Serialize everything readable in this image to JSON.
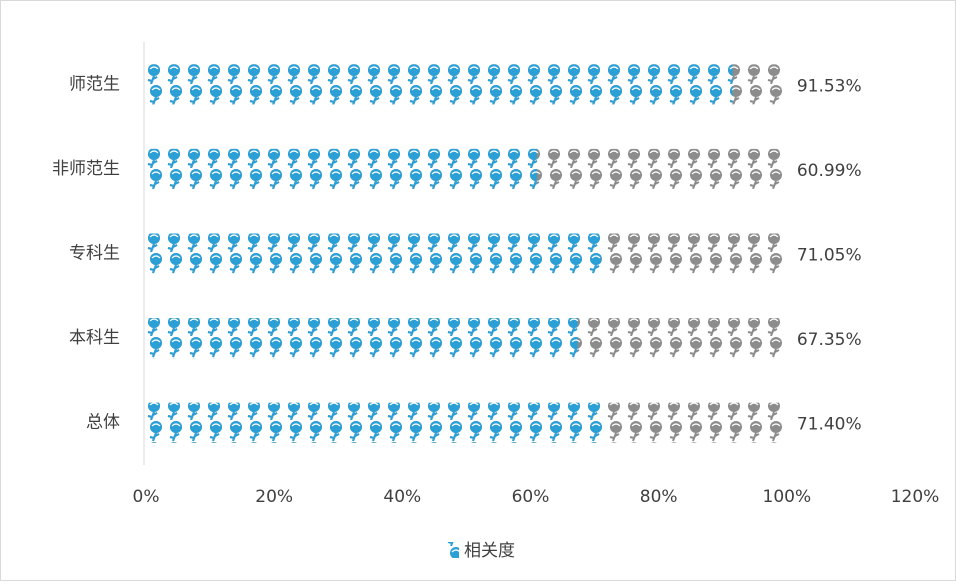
{
  "chart_data": {
    "type": "pictograph-bar",
    "categories": [
      "师范生",
      "非师范生",
      "专科生",
      "本科生",
      "总体"
    ],
    "series": [
      {
        "name": "相关度",
        "color": "#2ba0d6",
        "values": [
          91.53,
          60.99,
          71.05,
          67.35,
          71.4
        ],
        "value_labels": [
          "91.53%",
          "60.99%",
          "71.05%",
          "67.35%",
          "71.40%"
        ]
      }
    ],
    "track_color": "#8c8c8c",
    "xlim": [
      0,
      120
    ],
    "xticks": [
      {
        "value": 0,
        "label": "0%"
      },
      {
        "value": 20,
        "label": "20%"
      },
      {
        "value": 40,
        "label": "40%"
      },
      {
        "value": 60,
        "label": "60%"
      },
      {
        "value": 80,
        "label": "80%"
      },
      {
        "value": 100,
        "label": "100%"
      },
      {
        "value": 120,
        "label": "120%"
      }
    ],
    "legend": "bottom"
  }
}
